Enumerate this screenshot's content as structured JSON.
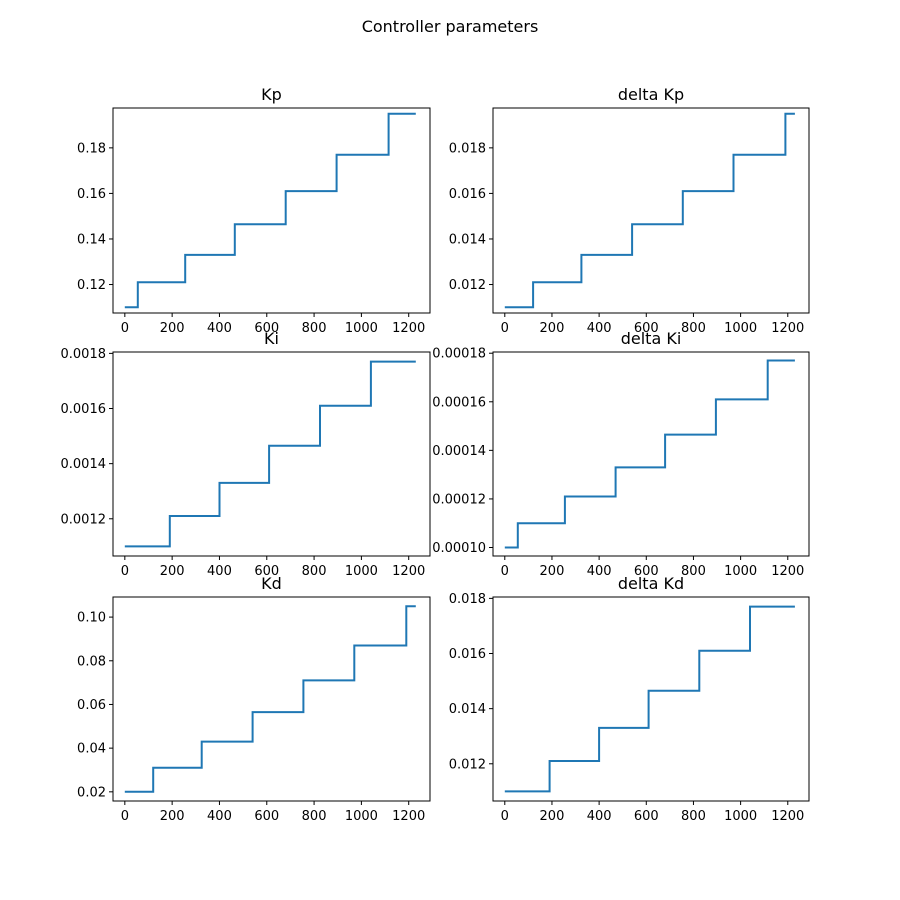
{
  "figure": {
    "title": "Controller parameters"
  },
  "chart_data": [
    {
      "type": "line",
      "title": "Kp",
      "xlim": [
        -50,
        1290
      ],
      "ylim": [
        0.1075,
        0.1975
      ],
      "x_ticks": [
        0,
        200,
        400,
        600,
        800,
        1000,
        1200
      ],
      "x_tick_labels": [
        "0",
        "200",
        "400",
        "600",
        "800",
        "1000",
        "1200"
      ],
      "y_ticks": [
        0.12,
        0.14,
        0.16,
        0.18
      ],
      "y_tick_labels": [
        "0.12",
        "0.14",
        "0.16",
        "0.18"
      ],
      "step": "post",
      "color": "#1f77b4",
      "x": [
        0,
        55,
        255,
        465,
        680,
        895,
        1115,
        1230
      ],
      "y": [
        0.11,
        0.121,
        0.133,
        0.1465,
        0.161,
        0.177,
        0.195,
        0.195
      ]
    },
    {
      "type": "line",
      "title": "delta Kp",
      "xlim": [
        -50,
        1290
      ],
      "ylim": [
        0.01075,
        0.01975
      ],
      "x_ticks": [
        0,
        200,
        400,
        600,
        800,
        1000,
        1200
      ],
      "x_tick_labels": [
        "0",
        "200",
        "400",
        "600",
        "800",
        "1000",
        "1200"
      ],
      "y_ticks": [
        0.012,
        0.014,
        0.016,
        0.018
      ],
      "y_tick_labels": [
        "0.012",
        "0.014",
        "0.016",
        "0.018"
      ],
      "step": "post",
      "color": "#1f77b4",
      "x": [
        0,
        120,
        325,
        540,
        755,
        970,
        1190,
        1230
      ],
      "y": [
        0.011,
        0.0121,
        0.0133,
        0.01465,
        0.0161,
        0.0177,
        0.0195,
        0.0195
      ]
    },
    {
      "type": "line",
      "title": "Ki",
      "xlim": [
        -50,
        1290
      ],
      "ylim": [
        0.001065,
        0.001805
      ],
      "x_ticks": [
        0,
        200,
        400,
        600,
        800,
        1000,
        1200
      ],
      "x_tick_labels": [
        "0",
        "200",
        "400",
        "600",
        "800",
        "1000",
        "1200"
      ],
      "y_ticks": [
        0.0012,
        0.0014,
        0.0016,
        0.0018
      ],
      "y_tick_labels": [
        "0.0012",
        "0.0014",
        "0.0016",
        "0.0018"
      ],
      "step": "post",
      "color": "#1f77b4",
      "x": [
        0,
        190,
        400,
        610,
        825,
        1040,
        1230
      ],
      "y": [
        0.0011,
        0.00121,
        0.00133,
        0.001465,
        0.00161,
        0.00177,
        0.00177
      ]
    },
    {
      "type": "line",
      "title": "delta Ki",
      "xlim": [
        -50,
        1290
      ],
      "ylim": [
        9.65e-05,
        0.0001805
      ],
      "x_ticks": [
        0,
        200,
        400,
        600,
        800,
        1000,
        1200
      ],
      "x_tick_labels": [
        "0",
        "200",
        "400",
        "600",
        "800",
        "1000",
        "1200"
      ],
      "y_ticks": [
        0.0001,
        0.00012,
        0.00014,
        0.00016,
        0.00018
      ],
      "y_tick_labels": [
        "0.00010",
        "0.00012",
        "0.00014",
        "0.00016",
        "0.00018"
      ],
      "step": "post",
      "color": "#1f77b4",
      "x": [
        0,
        55,
        255,
        470,
        680,
        895,
        1115,
        1230
      ],
      "y": [
        0.0001,
        0.00011,
        0.000121,
        0.000133,
        0.0001465,
        0.000161,
        0.000177,
        0.000177
      ]
    },
    {
      "type": "line",
      "title": "Kd",
      "xlim": [
        -50,
        1290
      ],
      "ylim": [
        0.0158,
        0.1092
      ],
      "x_ticks": [
        0,
        200,
        400,
        600,
        800,
        1000,
        1200
      ],
      "x_tick_labels": [
        "0",
        "200",
        "400",
        "600",
        "800",
        "1000",
        "1200"
      ],
      "y_ticks": [
        0.02,
        0.04,
        0.06,
        0.08,
        0.1
      ],
      "y_tick_labels": [
        "0.02",
        "0.04",
        "0.06",
        "0.08",
        "0.10"
      ],
      "step": "post",
      "color": "#1f77b4",
      "x": [
        0,
        120,
        325,
        540,
        755,
        970,
        1190,
        1230
      ],
      "y": [
        0.02,
        0.031,
        0.043,
        0.0565,
        0.071,
        0.087,
        0.105,
        0.105
      ]
    },
    {
      "type": "line",
      "title": "delta Kd",
      "xlim": [
        -50,
        1290
      ],
      "ylim": [
        0.01065,
        0.01805
      ],
      "x_ticks": [
        0,
        200,
        400,
        600,
        800,
        1000,
        1200
      ],
      "x_tick_labels": [
        "0",
        "200",
        "400",
        "600",
        "800",
        "1000",
        "1200"
      ],
      "y_ticks": [
        0.012,
        0.014,
        0.016,
        0.018
      ],
      "y_tick_labels": [
        "0.012",
        "0.014",
        "0.016",
        "0.018"
      ],
      "step": "post",
      "color": "#1f77b4",
      "x": [
        0,
        190,
        400,
        610,
        825,
        1040,
        1230
      ],
      "y": [
        0.011,
        0.0121,
        0.0133,
        0.01465,
        0.0161,
        0.0177,
        0.0177
      ]
    }
  ]
}
